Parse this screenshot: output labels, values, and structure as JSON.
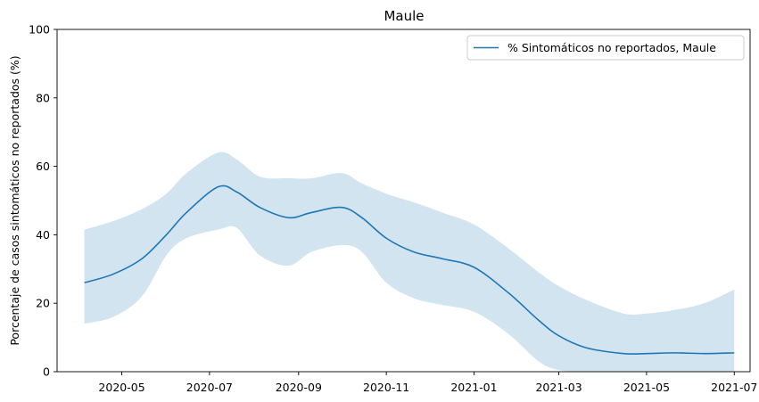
{
  "chart_data": {
    "type": "line",
    "title": "Maule",
    "xlabel": "",
    "ylabel": "Porcentaje de casos sintomáticos no reportados (%)",
    "x_start": "2020-04-05",
    "x_end": "2021-07-01",
    "xlim": [
      "2020-03-17",
      "2021-07-12"
    ],
    "ylim": [
      0,
      100
    ],
    "x_ticks": [
      {
        "date": "2020-05-01",
        "label": "2020-05"
      },
      {
        "date": "2020-07-01",
        "label": "2020-07"
      },
      {
        "date": "2020-09-01",
        "label": "2020-09"
      },
      {
        "date": "2020-11-01",
        "label": "2020-11"
      },
      {
        "date": "2021-01-01",
        "label": "2021-01"
      },
      {
        "date": "2021-03-01",
        "label": "2021-03"
      },
      {
        "date": "2021-05-01",
        "label": "2021-05"
      },
      {
        "date": "2021-07-01",
        "label": "2021-07"
      }
    ],
    "y_ticks": [
      0,
      20,
      40,
      60,
      80,
      100
    ],
    "grid": false,
    "legend_position": "top-right",
    "series": [
      {
        "name": "% Sintomáticos no reportados, Maule",
        "color": "#1f77b4",
        "band_color": "#1f77b4",
        "band_opacity": 0.2,
        "x": [
          "2020-04-05",
          "2020-04-25",
          "2020-05-15",
          "2020-06-01",
          "2020-06-15",
          "2020-07-07",
          "2020-07-20",
          "2020-08-05",
          "2020-08-25",
          "2020-09-10",
          "2020-10-01",
          "2020-10-15",
          "2020-11-01",
          "2020-11-20",
          "2020-12-10",
          "2021-01-01",
          "2021-01-25",
          "2021-02-15",
          "2021-03-01",
          "2021-03-20",
          "2021-04-15",
          "2021-05-01",
          "2021-05-20",
          "2021-06-10",
          "2021-07-01"
        ],
        "y": [
          26,
          28.5,
          33,
          40,
          46.5,
          54,
          52.5,
          48,
          45,
          46.5,
          48,
          45,
          39,
          35,
          33,
          30.5,
          23,
          15,
          10.5,
          7,
          5.3,
          5.3,
          5.5,
          5.3,
          5.5
        ],
        "lower": [
          14,
          16,
          22,
          34,
          39,
          41.5,
          42,
          34,
          31,
          35,
          37,
          35,
          26,
          21.5,
          19.5,
          17.5,
          11,
          3,
          0.5,
          0,
          0,
          0,
          0,
          0,
          0
        ],
        "upper": [
          41.5,
          44,
          47.5,
          52,
          58,
          64,
          62,
          57,
          56.5,
          56.5,
          58,
          55,
          52,
          49.5,
          46.5,
          43,
          36,
          29,
          25,
          21,
          17,
          17,
          18,
          20,
          24
        ]
      }
    ]
  }
}
